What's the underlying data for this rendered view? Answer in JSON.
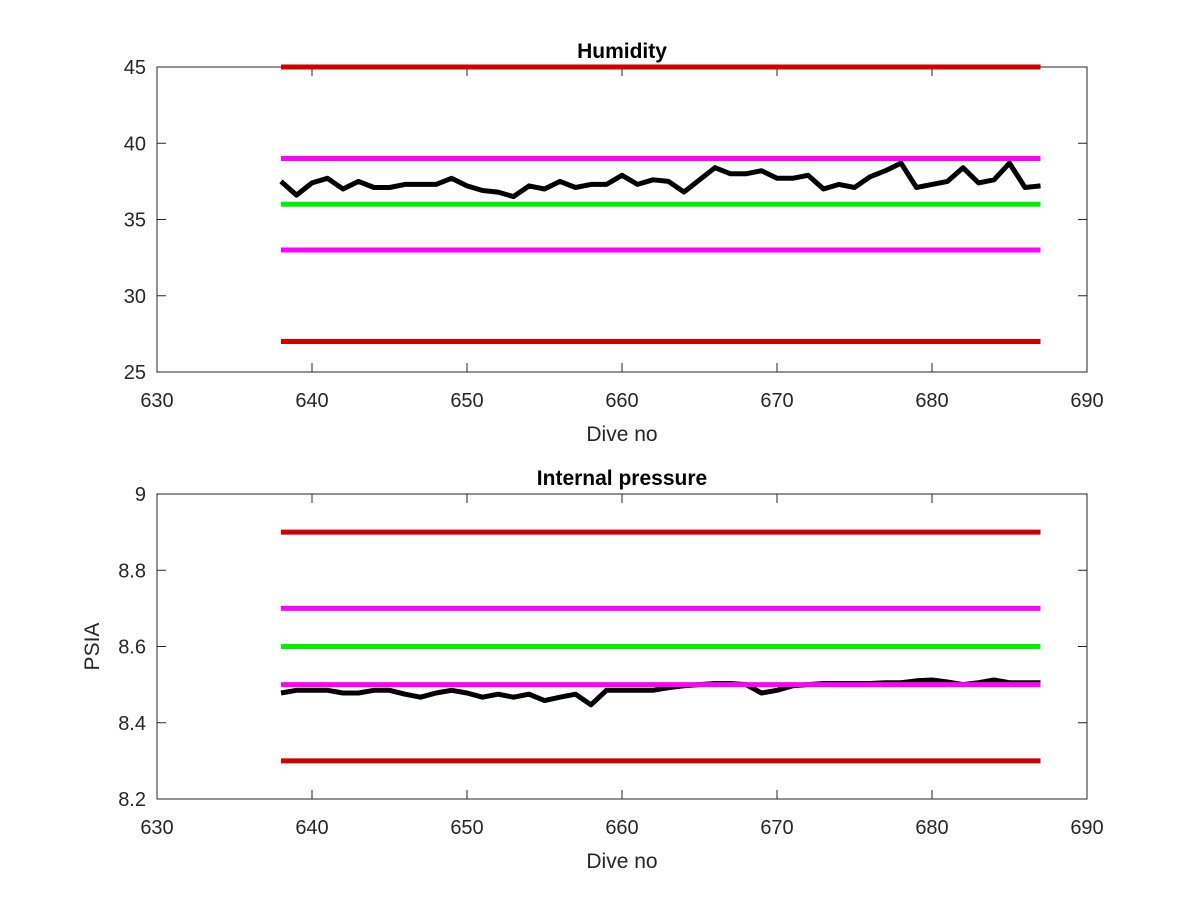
{
  "chart_data": [
    {
      "type": "line",
      "title": "Humidity",
      "xlabel": "Dive no",
      "ylabel": "",
      "xlim": [
        630,
        690
      ],
      "ylim": [
        25,
        45
      ],
      "xticks": [
        630,
        640,
        650,
        660,
        670,
        680,
        690
      ],
      "yticks": [
        25,
        30,
        35,
        40,
        45
      ],
      "grid": false,
      "series": [
        {
          "color": "#000000",
          "x": [
            638,
            639,
            640,
            641,
            642,
            643,
            644,
            645,
            646,
            647,
            648,
            649,
            650,
            651,
            652,
            653,
            654,
            655,
            656,
            657,
            658,
            659,
            660,
            661,
            662,
            663,
            664,
            665,
            666,
            667,
            668,
            669,
            670,
            671,
            672,
            673,
            674,
            675,
            676,
            677,
            678,
            679,
            680,
            681,
            682,
            683,
            684,
            685,
            686,
            687
          ],
          "y": [
            37.5,
            36.6,
            37.4,
            37.7,
            37.0,
            37.5,
            37.1,
            37.1,
            37.3,
            37.3,
            37.3,
            37.7,
            37.2,
            36.9,
            36.8,
            36.5,
            37.2,
            37.0,
            37.5,
            37.1,
            37.3,
            37.3,
            37.9,
            37.3,
            37.6,
            37.5,
            36.8,
            37.6,
            38.4,
            38.0,
            38.0,
            38.2,
            37.7,
            37.7,
            37.9,
            37.0,
            37.3,
            37.1,
            37.8,
            38.2,
            38.7,
            37.1,
            37.3,
            37.5,
            38.4,
            37.4,
            37.6,
            38.7,
            37.1,
            37.2
          ]
        },
        {
          "color": "#cc0000",
          "x": [
            638,
            687
          ],
          "y": [
            45,
            45
          ]
        },
        {
          "color": "#ff00ff",
          "x": [
            638,
            687
          ],
          "y": [
            39,
            39
          ]
        },
        {
          "color": "#00ee00",
          "x": [
            638,
            687
          ],
          "y": [
            36,
            36
          ]
        },
        {
          "color": "#ff00ff",
          "x": [
            638,
            687
          ],
          "y": [
            33,
            33
          ]
        },
        {
          "color": "#cc0000",
          "x": [
            638,
            687
          ],
          "y": [
            27,
            27
          ]
        }
      ]
    },
    {
      "type": "line",
      "title": "Internal pressure",
      "xlabel": "Dive no",
      "ylabel": "PSIA",
      "xlim": [
        630,
        690
      ],
      "ylim": [
        8.2,
        9
      ],
      "xticks": [
        630,
        640,
        650,
        660,
        670,
        680,
        690
      ],
      "yticks": [
        8.2,
        8.4,
        8.6,
        8.8,
        9
      ],
      "grid": false,
      "series": [
        {
          "color": "#000000",
          "x": [
            638,
            639,
            640,
            641,
            642,
            643,
            644,
            645,
            646,
            647,
            648,
            649,
            650,
            651,
            652,
            653,
            654,
            655,
            656,
            657,
            658,
            659,
            660,
            661,
            662,
            663,
            664,
            665,
            666,
            667,
            668,
            669,
            670,
            671,
            672,
            673,
            674,
            675,
            676,
            677,
            678,
            679,
            680,
            681,
            682,
            683,
            684,
            685,
            686,
            687
          ],
          "y": [
            8.478,
            8.485,
            8.485,
            8.485,
            8.478,
            8.478,
            8.485,
            8.485,
            8.475,
            8.467,
            8.478,
            8.485,
            8.478,
            8.467,
            8.475,
            8.467,
            8.475,
            8.458,
            8.467,
            8.475,
            8.447,
            8.485,
            8.485,
            8.485,
            8.485,
            8.492,
            8.497,
            8.5,
            8.503,
            8.503,
            8.5,
            8.478,
            8.485,
            8.497,
            8.5,
            8.503,
            8.503,
            8.503,
            8.503,
            8.505,
            8.505,
            8.51,
            8.512,
            8.507,
            8.5,
            8.505,
            8.512,
            8.505,
            8.505,
            8.505
          ]
        },
        {
          "color": "#cc0000",
          "x": [
            638,
            687
          ],
          "y": [
            8.9,
            8.9
          ]
        },
        {
          "color": "#ff00ff",
          "x": [
            638,
            687
          ],
          "y": [
            8.7,
            8.7
          ]
        },
        {
          "color": "#00ee00",
          "x": [
            638,
            687
          ],
          "y": [
            8.6,
            8.6
          ]
        },
        {
          "color": "#ff00ff",
          "x": [
            638,
            687
          ],
          "y": [
            8.5,
            8.5
          ]
        },
        {
          "color": "#cc0000",
          "x": [
            638,
            687
          ],
          "y": [
            8.3,
            8.3
          ]
        }
      ]
    }
  ]
}
